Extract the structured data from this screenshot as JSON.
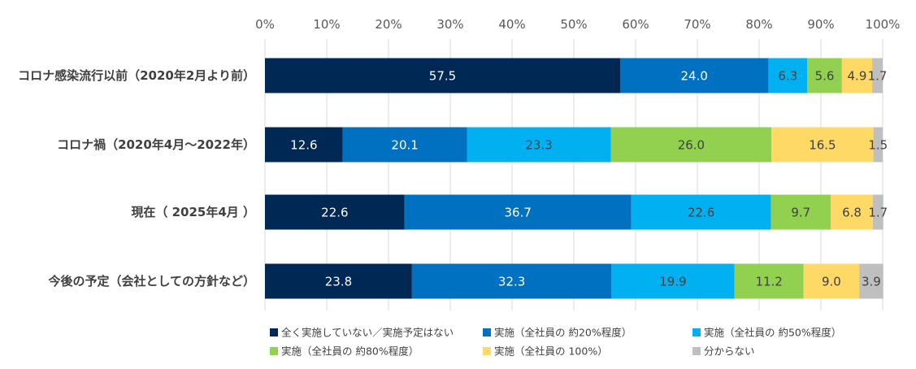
{
  "chart_data": {
    "type": "bar",
    "orientation": "horizontal",
    "stacked": true,
    "xlim": [
      0,
      100
    ],
    "x_ticks": [
      "0%",
      "10%",
      "20%",
      "30%",
      "40%",
      "50%",
      "60%",
      "70%",
      "80%",
      "90%",
      "100%"
    ],
    "x_tick_values": [
      0,
      10,
      20,
      30,
      40,
      50,
      60,
      70,
      80,
      90,
      100
    ],
    "grid": true,
    "legend_position": "bottom",
    "categories": [
      "コロナ感染流行以前（2020年2月より前）",
      "コロナ禍（2020年4月～2022年）",
      "現在（ 2025年4月 ）",
      "今後の予定（会社としての方針など）"
    ],
    "series": [
      {
        "name": "全く実施していない／実施予定はない",
        "color": "#002855",
        "label_color": "#ffffff",
        "values": [
          57.5,
          12.6,
          22.6,
          23.8
        ],
        "labels": [
          "57.5",
          "12.6",
          "22.6",
          "23.8"
        ]
      },
      {
        "name": "実施（全社員の 約20%程度）",
        "color": "#0070C0",
        "label_color": "#ffffff",
        "values": [
          24.0,
          20.1,
          36.7,
          32.3
        ],
        "labels": [
          "24.0",
          "20.1",
          "36.7",
          "32.3"
        ]
      },
      {
        "name": "実施（全社員の 約50%程度）",
        "color": "#00B0F0",
        "label_color": "#404040",
        "values": [
          6.3,
          23.3,
          22.6,
          19.9
        ],
        "labels": [
          "6.3",
          "23.3",
          "22.6",
          "19.9"
        ]
      },
      {
        "name": "実施（全社員の 約80%程度）",
        "color": "#92D050",
        "label_color": "#404040",
        "values": [
          5.6,
          26.0,
          9.7,
          11.2
        ],
        "labels": [
          "5.6",
          "26.0",
          "9.7",
          "11.2"
        ]
      },
      {
        "name": "実施（全社員の 100%）",
        "color": "#FFD966",
        "label_color": "#404040",
        "values": [
          4.9,
          16.5,
          6.8,
          9.0
        ],
        "labels": [
          "4.9",
          "16.5",
          "6.8",
          "9.0"
        ]
      },
      {
        "name": "分からない",
        "color": "#BFBFBF",
        "label_color": "#404040",
        "values": [
          1.7,
          1.5,
          1.7,
          3.9
        ],
        "labels": [
          "1.7",
          "1.5",
          "1.7",
          "3.9"
        ]
      }
    ],
    "colors": {
      "grid": "#d9d9d9",
      "tick_text": "#595959",
      "category_text": "#404040"
    }
  }
}
